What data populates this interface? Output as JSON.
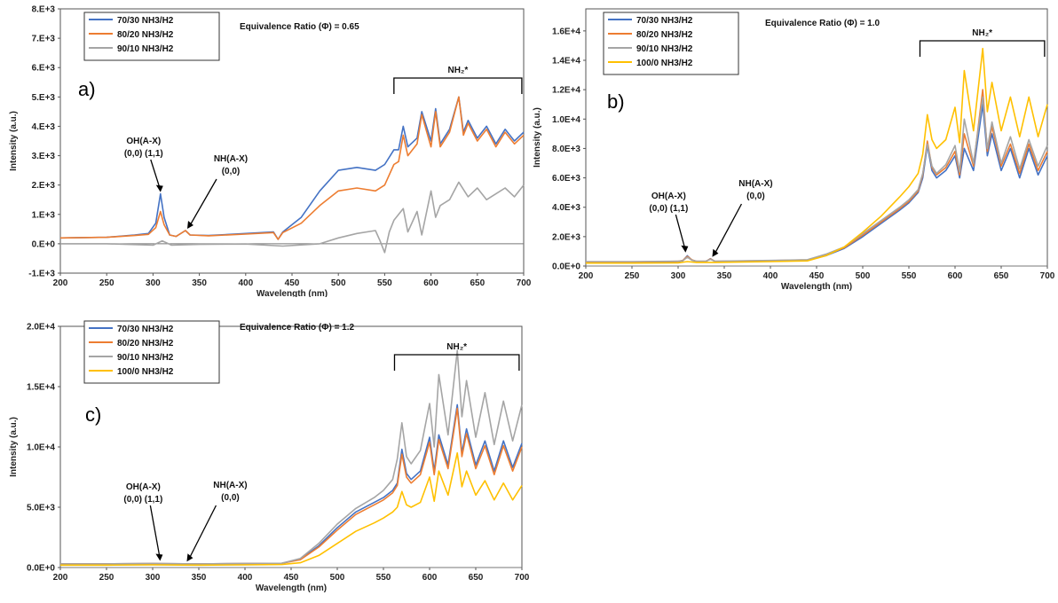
{
  "chart_data": [
    {
      "type": "line",
      "panel_letter": "a)",
      "title": "Equivalence Ratio (Φ) = 0.65",
      "xlabel": "Wavelength (nm)",
      "ylabel": "Intensity (a.u.)",
      "xlim": [
        200,
        700
      ],
      "ylim": [
        -1000,
        8000
      ],
      "x_ticks": [
        "200",
        "250",
        "300",
        "350",
        "400",
        "450",
        "500",
        "550",
        "600",
        "650",
        "700"
      ],
      "y_ticks": [
        "-1.E+3",
        "0.E+0",
        "1.E+3",
        "2.E+3",
        "3.E+3",
        "4.E+3",
        "5.E+3",
        "6.E+3",
        "7.E+3",
        "8.E+3"
      ],
      "y_tick_values": [
        -1000,
        0,
        1000,
        2000,
        3000,
        4000,
        5000,
        6000,
        7000,
        8000
      ],
      "legend_position": "top-left",
      "series": [
        {
          "name": "70/30 NH3/H2",
          "color": "#4472c4",
          "x": [
            200,
            250,
            280,
            295,
            303,
            308,
            312,
            318,
            325,
            335,
            340,
            360,
            400,
            430,
            435,
            440,
            460,
            480,
            500,
            520,
            540,
            550,
            560,
            565,
            570,
            575,
            585,
            590,
            600,
            605,
            610,
            620,
            630,
            635,
            640,
            650,
            660,
            670,
            680,
            690,
            700
          ],
          "y": [
            200,
            220,
            300,
            350,
            700,
            1700,
            900,
            300,
            250,
            450,
            300,
            280,
            350,
            400,
            150,
            400,
            900,
            1800,
            2500,
            2600,
            2500,
            2700,
            3200,
            3200,
            4000,
            3300,
            3600,
            4500,
            3500,
            4600,
            3400,
            3900,
            5000,
            3800,
            4200,
            3600,
            4000,
            3400,
            3900,
            3500,
            3800
          ]
        },
        {
          "name": "80/20 NH3/H2",
          "color": "#ed7d31",
          "x": [
            200,
            250,
            280,
            295,
            303,
            308,
            312,
            318,
            325,
            335,
            340,
            360,
            400,
            430,
            435,
            440,
            460,
            480,
            500,
            520,
            540,
            550,
            560,
            565,
            570,
            575,
            585,
            590,
            600,
            605,
            610,
            620,
            630,
            635,
            640,
            650,
            660,
            670,
            680,
            690,
            700
          ],
          "y": [
            200,
            220,
            280,
            320,
            550,
            1100,
            650,
            300,
            250,
            450,
            300,
            270,
            330,
            380,
            150,
            380,
            700,
            1300,
            1800,
            1900,
            1800,
            2000,
            2700,
            2800,
            3700,
            3000,
            3400,
            4400,
            3300,
            4500,
            3300,
            3800,
            5000,
            3700,
            4100,
            3500,
            3900,
            3300,
            3800,
            3400,
            3700
          ]
        },
        {
          "name": "90/10 NH3/H2",
          "color": "#a5a5a5",
          "x": [
            200,
            250,
            300,
            310,
            320,
            350,
            400,
            440,
            460,
            480,
            500,
            520,
            540,
            545,
            550,
            555,
            560,
            570,
            575,
            585,
            590,
            600,
            605,
            610,
            620,
            630,
            640,
            650,
            660,
            670,
            680,
            690,
            700
          ],
          "y": [
            0,
            0,
            -50,
            100,
            -50,
            -20,
            -10,
            -80,
            -40,
            0,
            200,
            350,
            450,
            100,
            -300,
            400,
            800,
            1200,
            400,
            1100,
            300,
            1800,
            900,
            1300,
            1500,
            2100,
            1600,
            1900,
            1500,
            1700,
            1900,
            1600,
            2000
          ]
        }
      ],
      "annotations": [
        {
          "text_lines": [
            "OH(A-X)",
            "(0,0) (1,1)"
          ],
          "target": [
            309,
            1700
          ]
        },
        {
          "text_lines": [
            "NH(A-X)",
            "(0,0)"
          ],
          "target": [
            336,
            450
          ]
        },
        {
          "text": "NH₂*",
          "range": [
            560,
            698
          ]
        }
      ]
    },
    {
      "type": "line",
      "panel_letter": "b)",
      "title": "Equivalence Ratio (Φ) = 1.0",
      "xlabel": "Wavelength (nm)",
      "ylabel": "Intensity (a.u.)",
      "xlim": [
        200,
        700
      ],
      "ylim": [
        0,
        17500
      ],
      "x_ticks": [
        "200",
        "250",
        "300",
        "350",
        "400",
        "450",
        "500",
        "550",
        "600",
        "650",
        "700"
      ],
      "y_ticks": [
        "0.0E+0",
        "2.0E+3",
        "4.0E+3",
        "6.0E+3",
        "8.0E+3",
        "1.0E+4",
        "1.2E+4",
        "1.4E+4",
        "1.6E+4"
      ],
      "y_tick_values": [
        0,
        2000,
        4000,
        6000,
        8000,
        10000,
        12000,
        14000,
        16000
      ],
      "legend_position": "top-left",
      "series": [
        {
          "name": "70/30 NH3/H2",
          "color": "#4472c4",
          "x": [
            200,
            250,
            300,
            305,
            310,
            315,
            320,
            330,
            335,
            340,
            400,
            440,
            460,
            480,
            500,
            520,
            540,
            550,
            560,
            565,
            570,
            575,
            580,
            590,
            600,
            605,
            610,
            620,
            630,
            635,
            640,
            650,
            660,
            670,
            680,
            690,
            700
          ],
          "y": [
            250,
            250,
            300,
            350,
            700,
            400,
            300,
            300,
            500,
            300,
            350,
            400,
            700,
            1200,
            2000,
            2900,
            3800,
            4300,
            5000,
            6000,
            8200,
            6500,
            6000,
            6500,
            7500,
            6000,
            8000,
            6500,
            11000,
            7500,
            9000,
            6500,
            8000,
            6000,
            8000,
            6200,
            7500
          ]
        },
        {
          "name": "80/20 NH3/H2",
          "color": "#ed7d31",
          "x": [
            200,
            250,
            300,
            305,
            310,
            315,
            320,
            330,
            335,
            340,
            400,
            440,
            460,
            480,
            500,
            520,
            540,
            550,
            560,
            565,
            570,
            575,
            580,
            590,
            600,
            605,
            610,
            620,
            630,
            635,
            640,
            650,
            660,
            670,
            680,
            690,
            700
          ],
          "y": [
            280,
            280,
            320,
            380,
            650,
            420,
            320,
            320,
            480,
            320,
            370,
            420,
            750,
            1250,
            2100,
            3000,
            3900,
            4400,
            5100,
            6200,
            8500,
            6700,
            6200,
            6700,
            7800,
            6200,
            9000,
            6800,
            12000,
            7800,
            9500,
            6800,
            8300,
            6300,
            8300,
            6500,
            7800
          ]
        },
        {
          "name": "90/10 NH3/H2",
          "color": "#a5a5a5",
          "x": [
            200,
            250,
            300,
            305,
            310,
            315,
            320,
            330,
            335,
            340,
            400,
            440,
            460,
            480,
            500,
            520,
            540,
            550,
            560,
            565,
            570,
            575,
            580,
            590,
            600,
            605,
            610,
            620,
            630,
            635,
            640,
            650,
            660,
            670,
            680,
            690,
            700
          ],
          "y": [
            300,
            300,
            330,
            360,
            600,
            400,
            330,
            330,
            450,
            330,
            380,
            430,
            800,
            1300,
            2200,
            3100,
            4000,
            4500,
            5200,
            6300,
            8300,
            6800,
            6300,
            6900,
            8200,
            6400,
            10000,
            7000,
            11500,
            8000,
            9800,
            7000,
            8800,
            6600,
            8600,
            6800,
            8200
          ]
        },
        {
          "name": "100/0 NH3/H2",
          "color": "#ffc000",
          "x": [
            200,
            250,
            300,
            310,
            320,
            340,
            400,
            440,
            460,
            480,
            500,
            520,
            540,
            550,
            560,
            565,
            570,
            575,
            580,
            590,
            600,
            605,
            610,
            620,
            630,
            635,
            640,
            650,
            660,
            670,
            680,
            690,
            700
          ],
          "y": [
            200,
            200,
            220,
            300,
            250,
            250,
            300,
            350,
            700,
            1300,
            2300,
            3400,
            4700,
            5400,
            6300,
            7600,
            10300,
            8600,
            8000,
            8600,
            10800,
            8400,
            13300,
            9200,
            14800,
            10500,
            12500,
            9200,
            11500,
            8800,
            11500,
            8800,
            11000
          ]
        }
      ],
      "annotations": [
        {
          "text_lines": [
            "OH(A-X)",
            "(0,0) (1,1)"
          ],
          "target": [
            309,
            800
          ]
        },
        {
          "text_lines": [
            "NH(A-X)",
            "(0,0)"
          ],
          "target": [
            336,
            500
          ]
        },
        {
          "text": "NH₂*",
          "range": [
            562,
            697
          ]
        }
      ]
    },
    {
      "type": "line",
      "panel_letter": "c)",
      "title": "Equivalence Ratio (Φ) = 1.2",
      "xlabel": "Wavelength (nm)",
      "ylabel": "Intensity (a.u.)",
      "xlim": [
        200,
        700
      ],
      "ylim": [
        0,
        20000
      ],
      "x_ticks": [
        "200",
        "250",
        "300",
        "350",
        "400",
        "450",
        "500",
        "550",
        "600",
        "650",
        "700"
      ],
      "y_ticks": [
        "0.0E+0",
        "5.0E+3",
        "1.0E+4",
        "1.5E+4",
        "2.0E+4"
      ],
      "y_tick_values": [
        0,
        5000,
        10000,
        15000,
        20000
      ],
      "legend_position": "top-left",
      "series": [
        {
          "name": "70/30 NH3/H2",
          "color": "#4472c4",
          "x": [
            200,
            250,
            300,
            350,
            400,
            440,
            460,
            480,
            500,
            520,
            540,
            550,
            560,
            565,
            570,
            575,
            580,
            590,
            600,
            605,
            610,
            620,
            630,
            635,
            640,
            650,
            660,
            670,
            680,
            690,
            700
          ],
          "y": [
            300,
            300,
            320,
            300,
            320,
            350,
            700,
            1800,
            3300,
            4600,
            5400,
            5800,
            6400,
            7000,
            9800,
            7800,
            7300,
            8000,
            10800,
            8000,
            11000,
            8500,
            13500,
            9500,
            11500,
            8500,
            10500,
            8000,
            10500,
            8300,
            10300
          ]
        },
        {
          "name": "80/20 NH3/H2",
          "color": "#ed7d31",
          "x": [
            200,
            250,
            300,
            350,
            400,
            440,
            460,
            480,
            500,
            520,
            540,
            550,
            560,
            565,
            570,
            575,
            580,
            590,
            600,
            605,
            610,
            620,
            630,
            635,
            640,
            650,
            660,
            670,
            680,
            690,
            700
          ],
          "y": [
            300,
            300,
            320,
            300,
            320,
            350,
            650,
            1700,
            3100,
            4400,
            5200,
            5600,
            6200,
            6800,
            9400,
            7500,
            7000,
            7700,
            10400,
            7700,
            10600,
            8200,
            13200,
            9200,
            11100,
            8200,
            10100,
            7700,
            10100,
            8000,
            10000
          ]
        },
        {
          "name": "90/10 NH3/H2",
          "color": "#a5a5a5",
          "x": [
            200,
            250,
            300,
            350,
            400,
            440,
            460,
            480,
            500,
            520,
            540,
            550,
            560,
            565,
            570,
            575,
            580,
            590,
            600,
            605,
            610,
            620,
            630,
            635,
            640,
            650,
            660,
            670,
            680,
            690,
            700
          ],
          "y": [
            300,
            300,
            320,
            300,
            320,
            350,
            750,
            2000,
            3600,
            4900,
            5800,
            6400,
            7300,
            9000,
            12000,
            9200,
            8600,
            9700,
            13600,
            10000,
            16000,
            11000,
            18000,
            12500,
            15500,
            10800,
            14500,
            10200,
            13800,
            10500,
            13500
          ]
        },
        {
          "name": "100/0 NH3/H2",
          "color": "#ffc000",
          "x": [
            200,
            250,
            300,
            350,
            400,
            440,
            460,
            480,
            500,
            520,
            540,
            550,
            560,
            565,
            570,
            575,
            580,
            590,
            600,
            605,
            610,
            620,
            630,
            635,
            640,
            650,
            660,
            670,
            680,
            690,
            700
          ],
          "y": [
            200,
            200,
            220,
            200,
            220,
            250,
            400,
            1000,
            2000,
            3000,
            3700,
            4100,
            4600,
            5000,
            6300,
            5200,
            5000,
            5400,
            7500,
            5500,
            8000,
            6000,
            9500,
            6700,
            8000,
            6000,
            7200,
            5600,
            7000,
            5600,
            6800
          ]
        }
      ],
      "annotations": [
        {
          "text_lines": [
            "OH(A-X)",
            "(0,0) (1,1)"
          ],
          "target": [
            309,
            400
          ]
        },
        {
          "text_lines": [
            "NH(A-X)",
            "(0,0)"
          ],
          "target": [
            336,
            350
          ]
        },
        {
          "text": "NH₂*",
          "range": [
            562,
            697
          ]
        }
      ]
    }
  ]
}
